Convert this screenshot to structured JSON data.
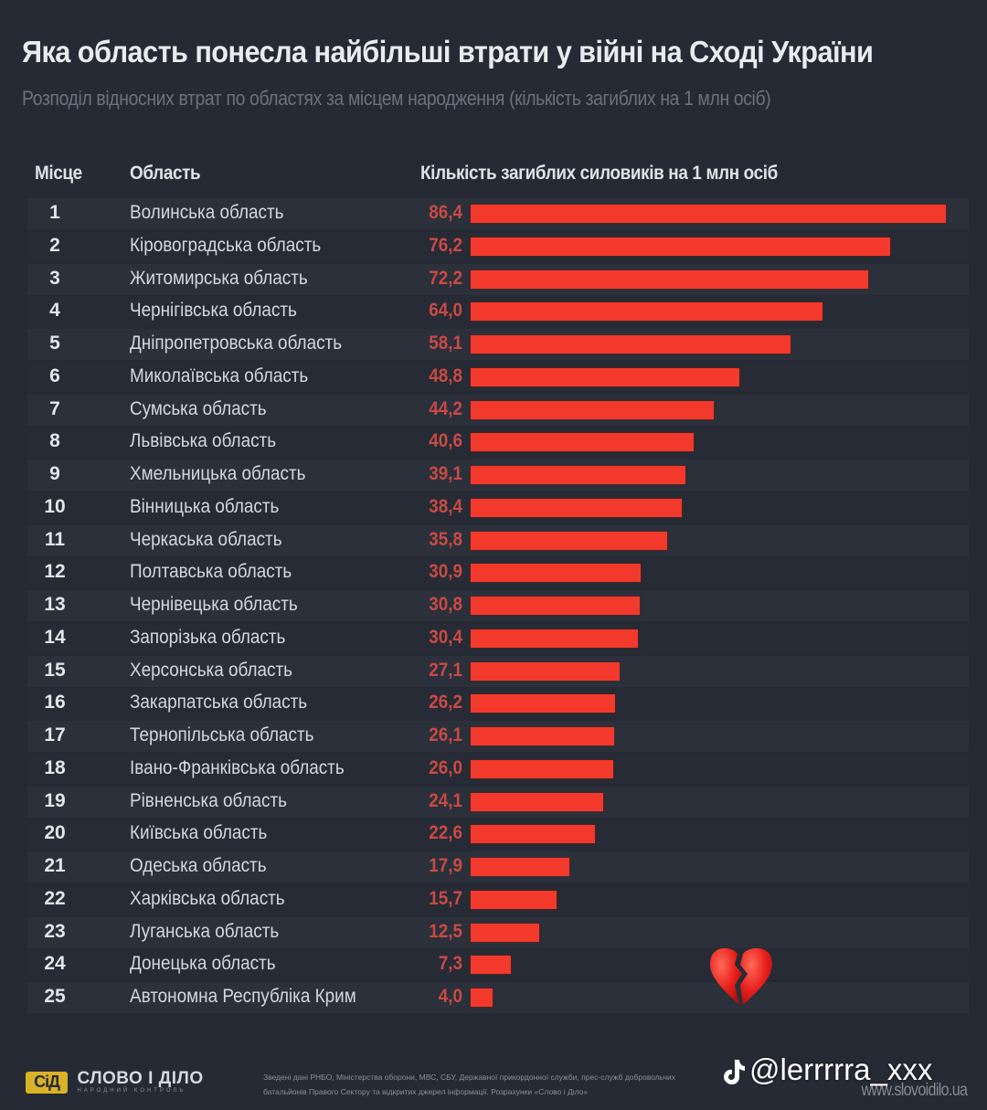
{
  "header": {
    "title": "Яка область понесла найбільші втрати у війні на Сході України",
    "subtitle": "Розподіл відносних втрат по областях за місцем народження (кількість загиблих на 1 млн осіб)"
  },
  "columns": {
    "rank": "Місце",
    "region": "Область",
    "value": "Кількість загиблих силовиків на 1 млн осіб"
  },
  "colors": {
    "bar": "#f2392b",
    "value_text": "#c94a45",
    "background": "#262a34",
    "logo": "#d9b227"
  },
  "chart_data": {
    "type": "bar",
    "orientation": "horizontal",
    "title": "Яка область понесла найбільші втрати у війні на Сході України",
    "subtitle": "Розподіл відносних втрат по областях за місцем народження (кількість загиблих на 1 млн осіб)",
    "xlabel": "Кількість загиблих силовиків на 1 млн осіб",
    "ylabel": "Область",
    "xlim": [
      0,
      86.4
    ],
    "grid": false,
    "legend": "none",
    "rows": [
      {
        "rank": "1",
        "region": "Волинська область",
        "label": "86,4",
        "value": 86.4
      },
      {
        "rank": "2",
        "region": "Кіровоградська область",
        "label": "76,2",
        "value": 76.2
      },
      {
        "rank": "3",
        "region": "Житомирська область",
        "label": "72,2",
        "value": 72.2
      },
      {
        "rank": "4",
        "region": "Чернігівська область",
        "label": "64,0",
        "value": 64.0
      },
      {
        "rank": "5",
        "region": "Дніпропетровська область",
        "label": "58,1",
        "value": 58.1
      },
      {
        "rank": "6",
        "region": "Миколаївська область",
        "label": "48,8",
        "value": 48.8
      },
      {
        "rank": "7",
        "region": "Сумська область",
        "label": "44,2",
        "value": 44.2
      },
      {
        "rank": "8",
        "region": "Львівська область",
        "label": "40,6",
        "value": 40.6
      },
      {
        "rank": "9",
        "region": "Хмельницька область",
        "label": "39,1",
        "value": 39.1
      },
      {
        "rank": "10",
        "region": "Вінницька область",
        "label": "38,4",
        "value": 38.4
      },
      {
        "rank": "11",
        "region": "Черкаська область",
        "label": "35,8",
        "value": 35.8
      },
      {
        "rank": "12",
        "region": "Полтавська область",
        "label": "30,9",
        "value": 30.9
      },
      {
        "rank": "13",
        "region": "Чернівецька область",
        "label": "30,8",
        "value": 30.8
      },
      {
        "rank": "14",
        "region": "Запорізька область",
        "label": "30,4",
        "value": 30.4
      },
      {
        "rank": "15",
        "region": "Херсонська область",
        "label": "27,1",
        "value": 27.1
      },
      {
        "rank": "16",
        "region": "Закарпатська область",
        "label": "26,2",
        "value": 26.2
      },
      {
        "rank": "17",
        "region": "Тернопільська область",
        "label": "26,1",
        "value": 26.1
      },
      {
        "rank": "18",
        "region": "Івано-Франківська область",
        "label": "26,0",
        "value": 26.0
      },
      {
        "rank": "19",
        "region": "Рівненська область",
        "label": "24,1",
        "value": 24.1
      },
      {
        "rank": "20",
        "region": "Київська область",
        "label": "22,6",
        "value": 22.6
      },
      {
        "rank": "21",
        "region": "Одеська область",
        "label": "17,9",
        "value": 17.9
      },
      {
        "rank": "22",
        "region": "Харківська область",
        "label": "15,7",
        "value": 15.7
      },
      {
        "rank": "23",
        "region": "Луганська область",
        "label": "12,5",
        "value": 12.5
      },
      {
        "rank": "24",
        "region": "Донецька область",
        "label": "7,3",
        "value": 7.3
      },
      {
        "rank": "25",
        "region": "Автономна Республіка Крим",
        "label": "4,0",
        "value": 4.0
      }
    ]
  },
  "overlay": {
    "emoji": "broken-heart",
    "watermark": "@lerrrrra_xxx"
  },
  "footer": {
    "logo_mark": "СіД",
    "logo_name": "СЛОВО І ДІЛО",
    "logo_tagline": "НАРОДНИЙ КОНТРОЛЬ",
    "sources_line1": "Зведені дані РНБО, Міністерства оборони, МВС, СБУ, Державної прикордонної служби, прес-служб добровольчих",
    "sources_line2": "батальйонів Правого Сектору та відкритих джерел інформації. Розрахунки «Слово і Діло»",
    "website": "www.slovoidilo.ua"
  }
}
